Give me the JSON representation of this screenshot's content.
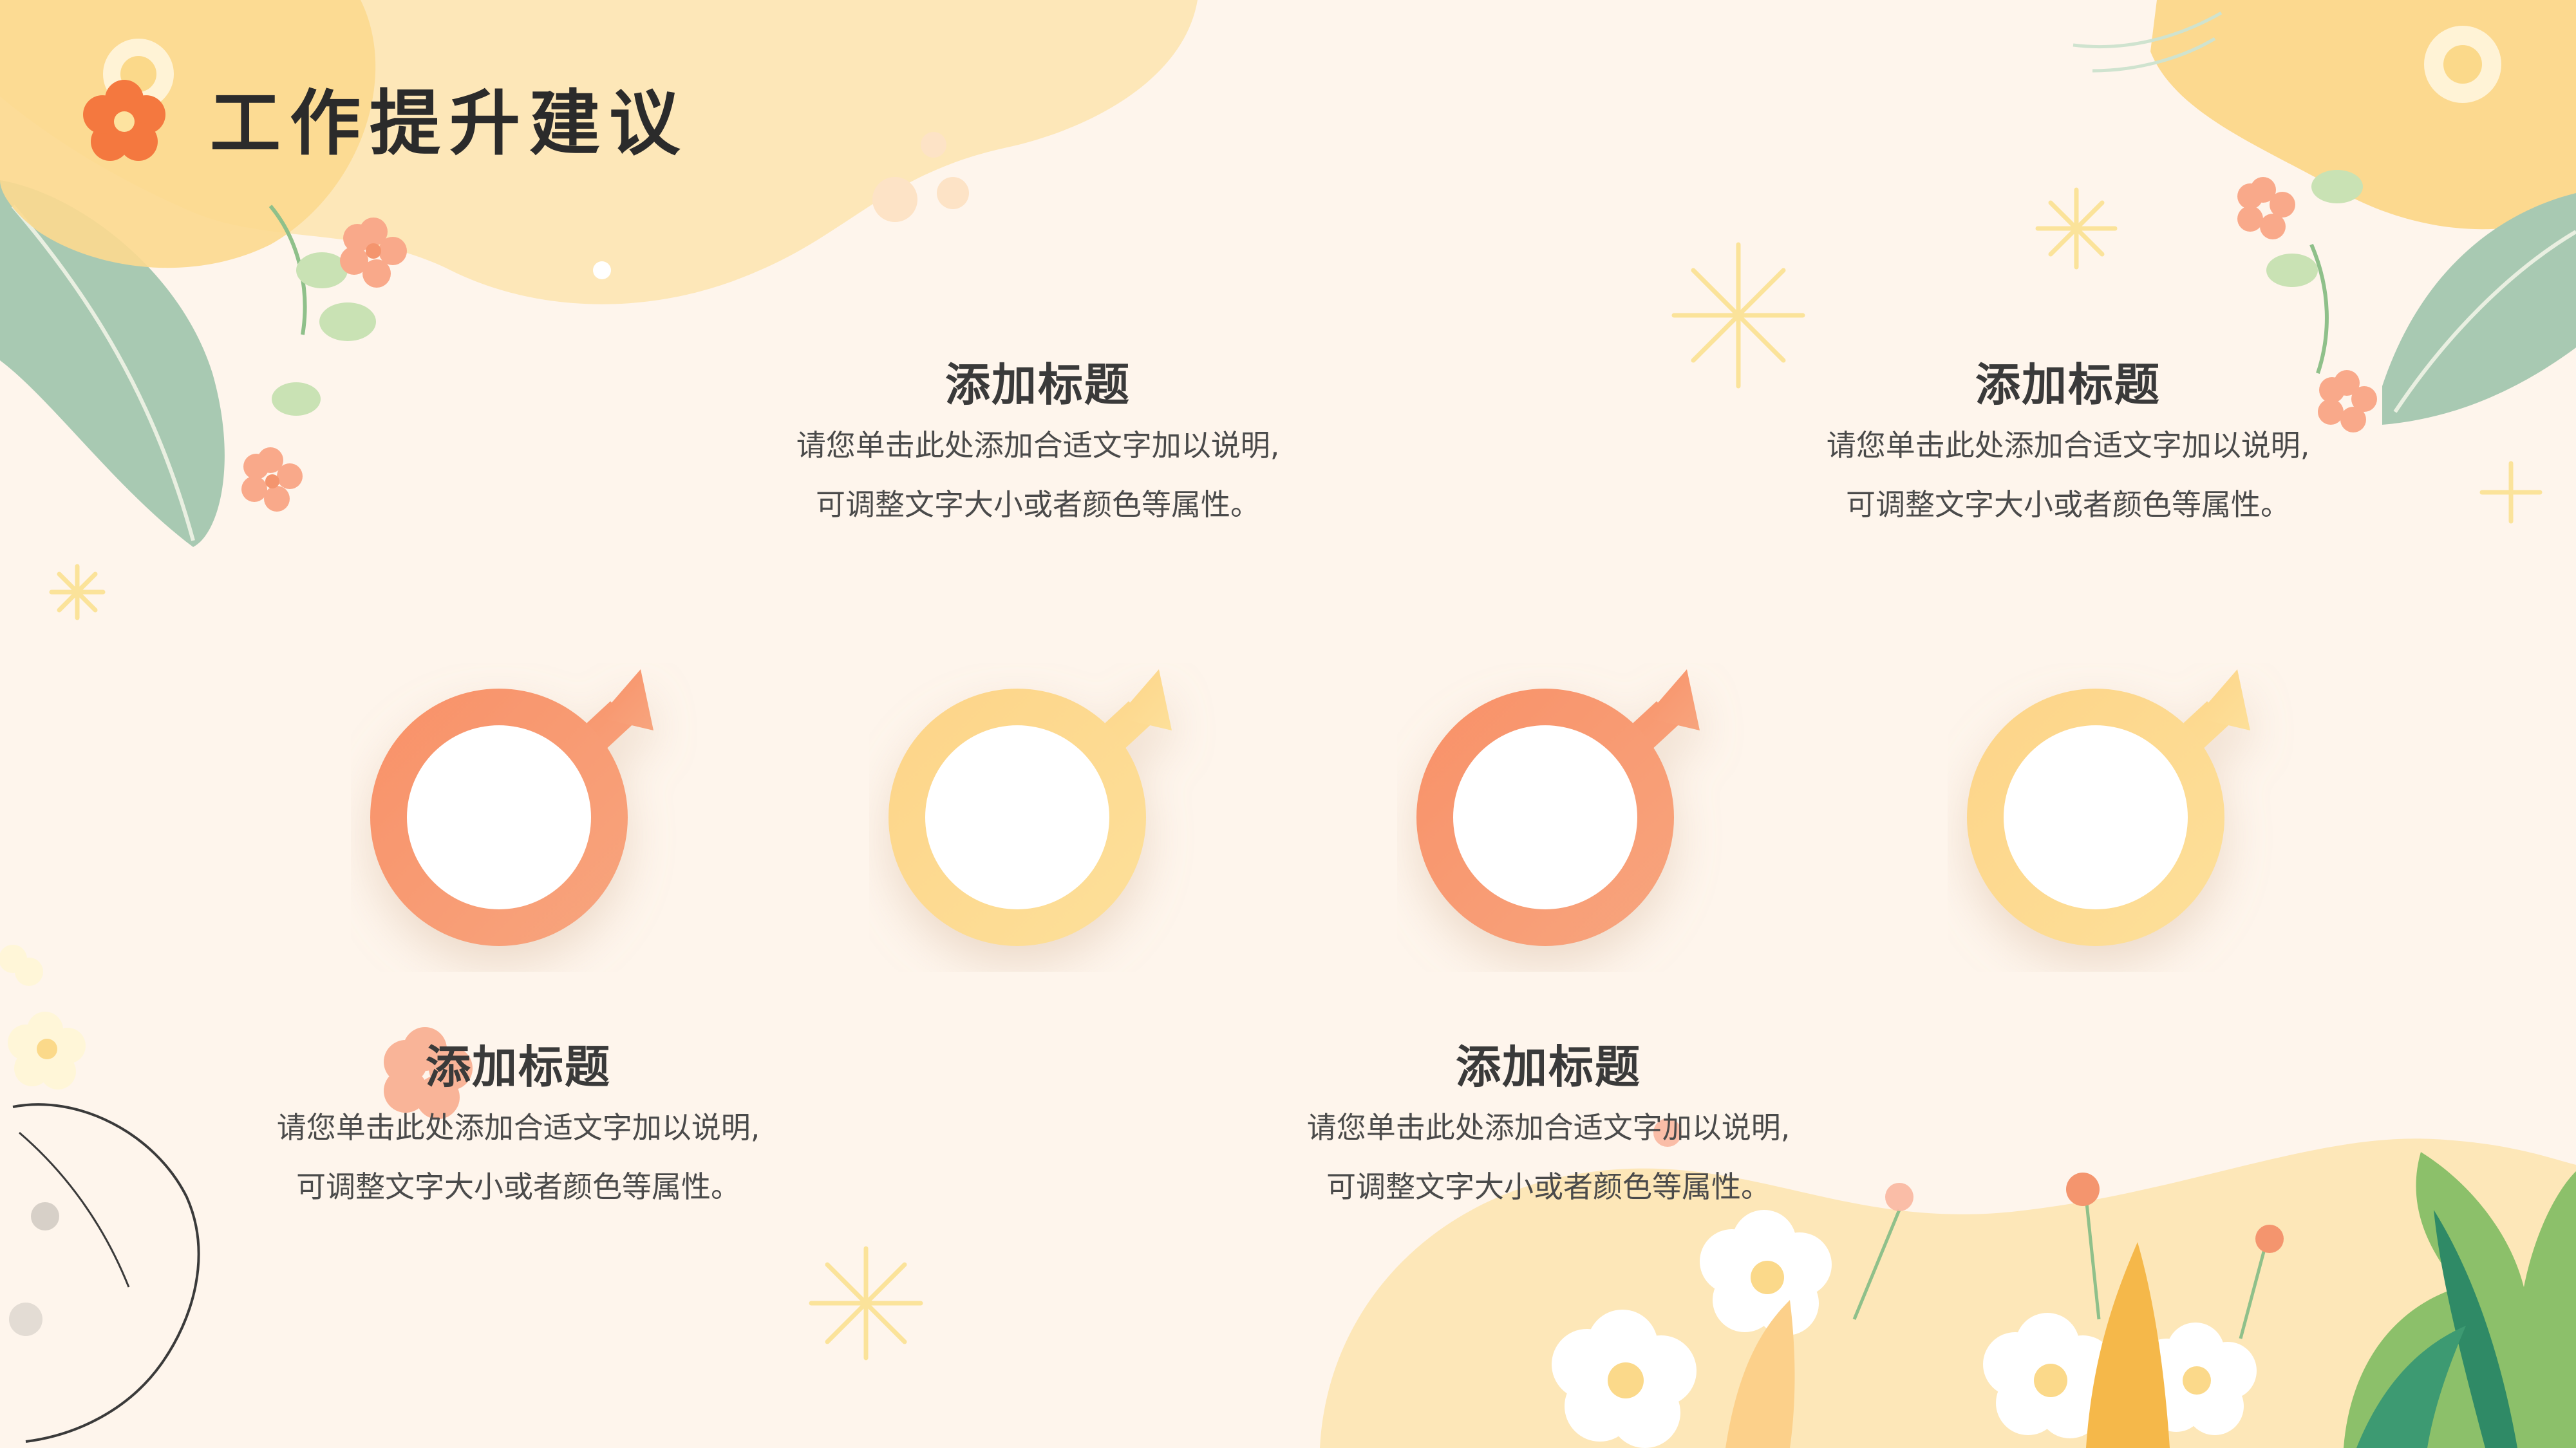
{
  "title": "工作提升建议",
  "colors": {
    "background": "#fef5ec",
    "orange": "#f4956e",
    "yellow": "#fbd98a"
  },
  "icons": {
    "title": "orange-flower-icon"
  },
  "items": [
    {
      "title": "添加标题",
      "line1": "请您单击此处添加合适文字加以说明,",
      "line2": "可调整文字大小或者颜色等属性。"
    },
    {
      "title": "添加标题",
      "line1": "请您单击此处添加合适文字加以说明,",
      "line2": "可调整文字大小或者颜色等属性。"
    },
    {
      "title": "添加标题",
      "line1": "请您单击此处添加合适文字加以说明,",
      "line2": "可调整文字大小或者颜色等属性。"
    },
    {
      "title": "添加标题",
      "line1": "请您单击此处添加合适文字加以说明,",
      "line2": "可调整文字大小或者颜色等属性。"
    }
  ]
}
